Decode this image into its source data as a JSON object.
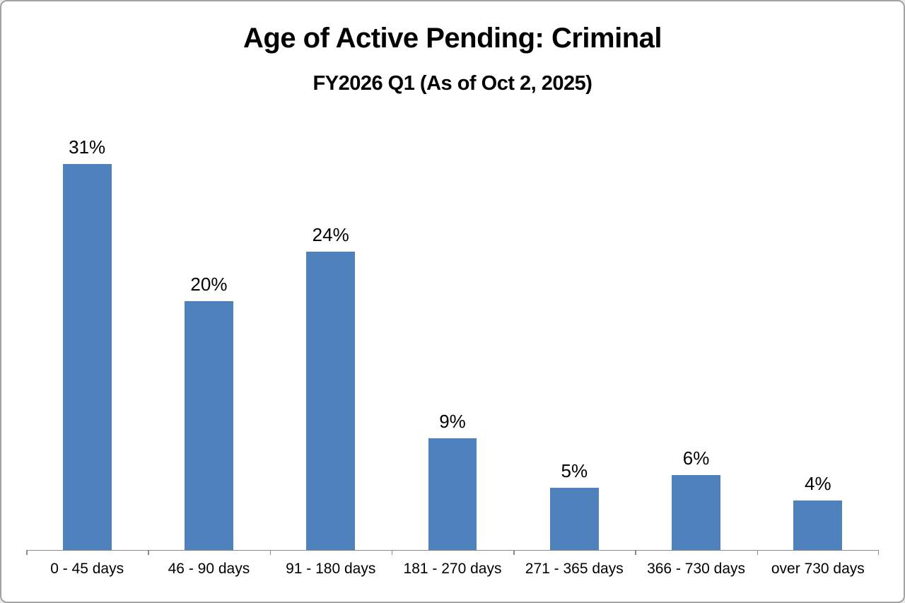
{
  "chart": {
    "title": "Age of Active Pending: Criminal",
    "subtitle": "FY2026 Q1 (As of Oct 2, 2025)"
  },
  "chart_data": {
    "type": "bar",
    "title": "Age of Active Pending: Criminal",
    "subtitle": "FY2026 Q1 (As of Oct 2, 2025)",
    "categories": [
      "0 - 45 days",
      "46 - 90 days",
      "91 - 180 days",
      "181 - 270 days",
      "271 - 365 days",
      "366 - 730 days",
      "over 730 days"
    ],
    "values": [
      31,
      20,
      24,
      9,
      5,
      6,
      4
    ],
    "data_labels": [
      "31%",
      "20%",
      "24%",
      "9%",
      "5%",
      "6%",
      "4%"
    ],
    "xlabel": "",
    "ylabel": "",
    "ylim": [
      0,
      35
    ],
    "grid": false,
    "legend": false,
    "y_axis_visible": false,
    "colors": {
      "bar": "#4F81BD",
      "axis": "#8A8A8A",
      "text": "#000000",
      "border": "#A3A3A3",
      "background": "#FFFFFF"
    }
  }
}
